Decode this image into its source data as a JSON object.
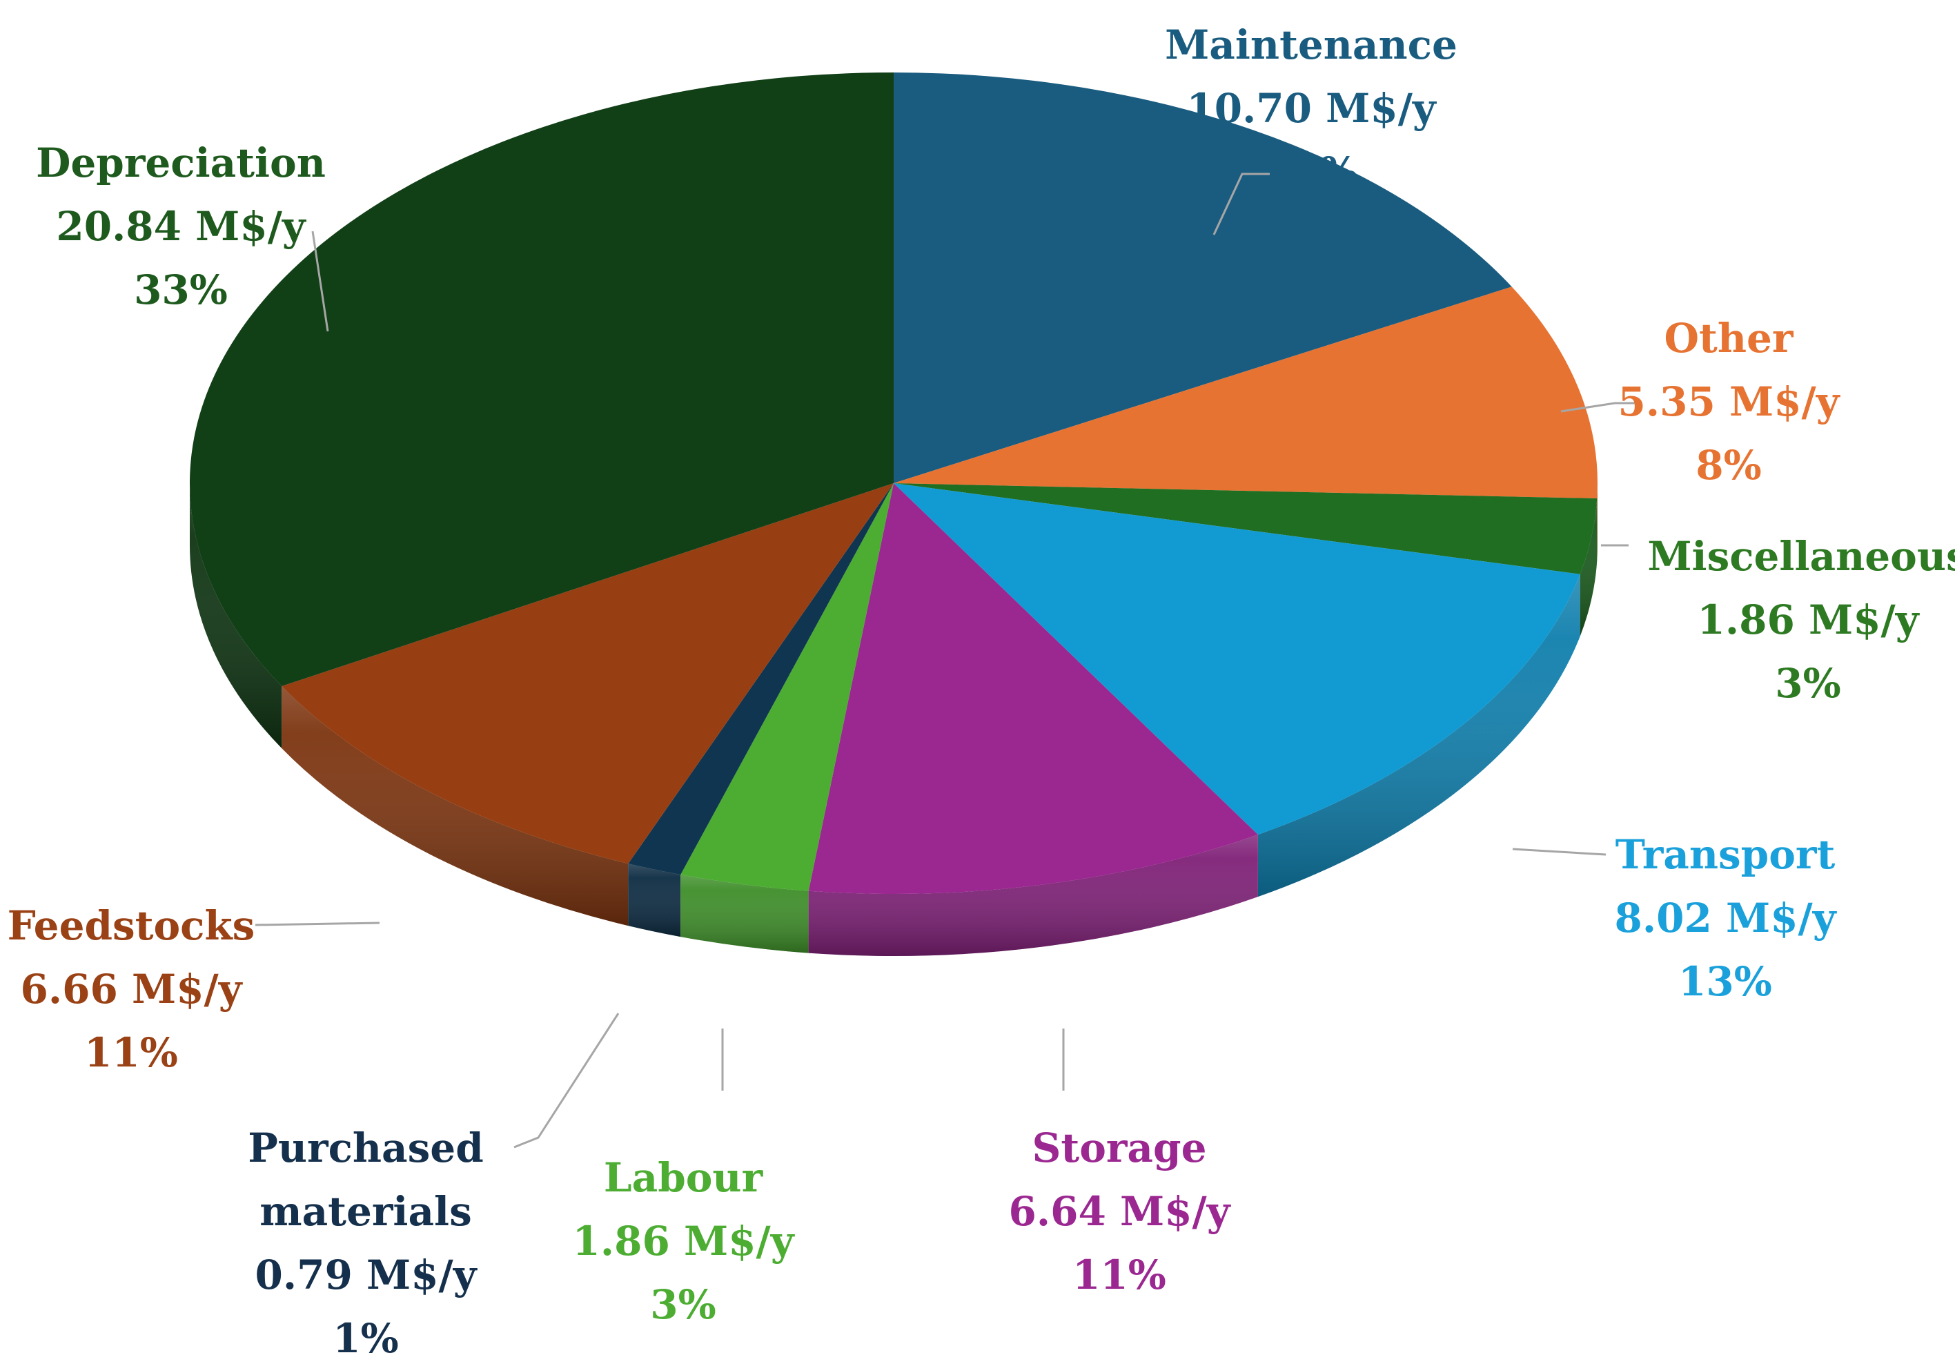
{
  "chart_data": {
    "type": "pie",
    "variant": "3d",
    "unit": "M$/y",
    "slices": [
      {
        "label_lines": [
          "Maintenance"
        ],
        "value": 10.7,
        "value_text": "10.70 M$/y",
        "percent_text": "17%",
        "color": "#1A5C80",
        "label_color": "#1A5C80"
      },
      {
        "label_lines": [
          "Other"
        ],
        "value": 5.35,
        "value_text": "5.35 M$/y",
        "percent_text": "8%",
        "color": "#E67332",
        "label_color": "#E67332"
      },
      {
        "label_lines": [
          "Miscellaneous"
        ],
        "value": 1.86,
        "value_text": "1.86 M$/y",
        "percent_text": "3%",
        "color": "#1F6E22",
        "label_color": "#2D7A22"
      },
      {
        "label_lines": [
          "Transport"
        ],
        "value": 8.02,
        "value_text": "8.02 M$/y",
        "percent_text": "13%",
        "color": "#129BD3",
        "label_color": "#1AA0DA"
      },
      {
        "label_lines": [
          "Storage"
        ],
        "value": 6.64,
        "value_text": "6.64 M$/y",
        "percent_text": "11%",
        "color": "#9B2791",
        "label_color": "#9B2791"
      },
      {
        "label_lines": [
          "Labour"
        ],
        "value": 1.86,
        "value_text": "1.86 M$/y",
        "percent_text": "3%",
        "color": "#4CAD32",
        "label_color": "#4CAD32"
      },
      {
        "label_lines": [
          "Purchased",
          "materials"
        ],
        "value": 0.79,
        "value_text": "0.79 M$/y",
        "percent_text": "1%",
        "color": "#0F3550",
        "label_color": "#15304C"
      },
      {
        "label_lines": [
          "Feedstocks"
        ],
        "value": 6.66,
        "value_text": "6.66 M$/y",
        "percent_text": "11%",
        "color": "#973F12",
        "label_color": "#9A4215"
      },
      {
        "label_lines": [
          "Depreciation"
        ],
        "value": 20.84,
        "value_text": "20.84 M$/y",
        "percent_text": "33%",
        "color": "#113F16",
        "label_color": "#1E5A1E"
      }
    ]
  }
}
